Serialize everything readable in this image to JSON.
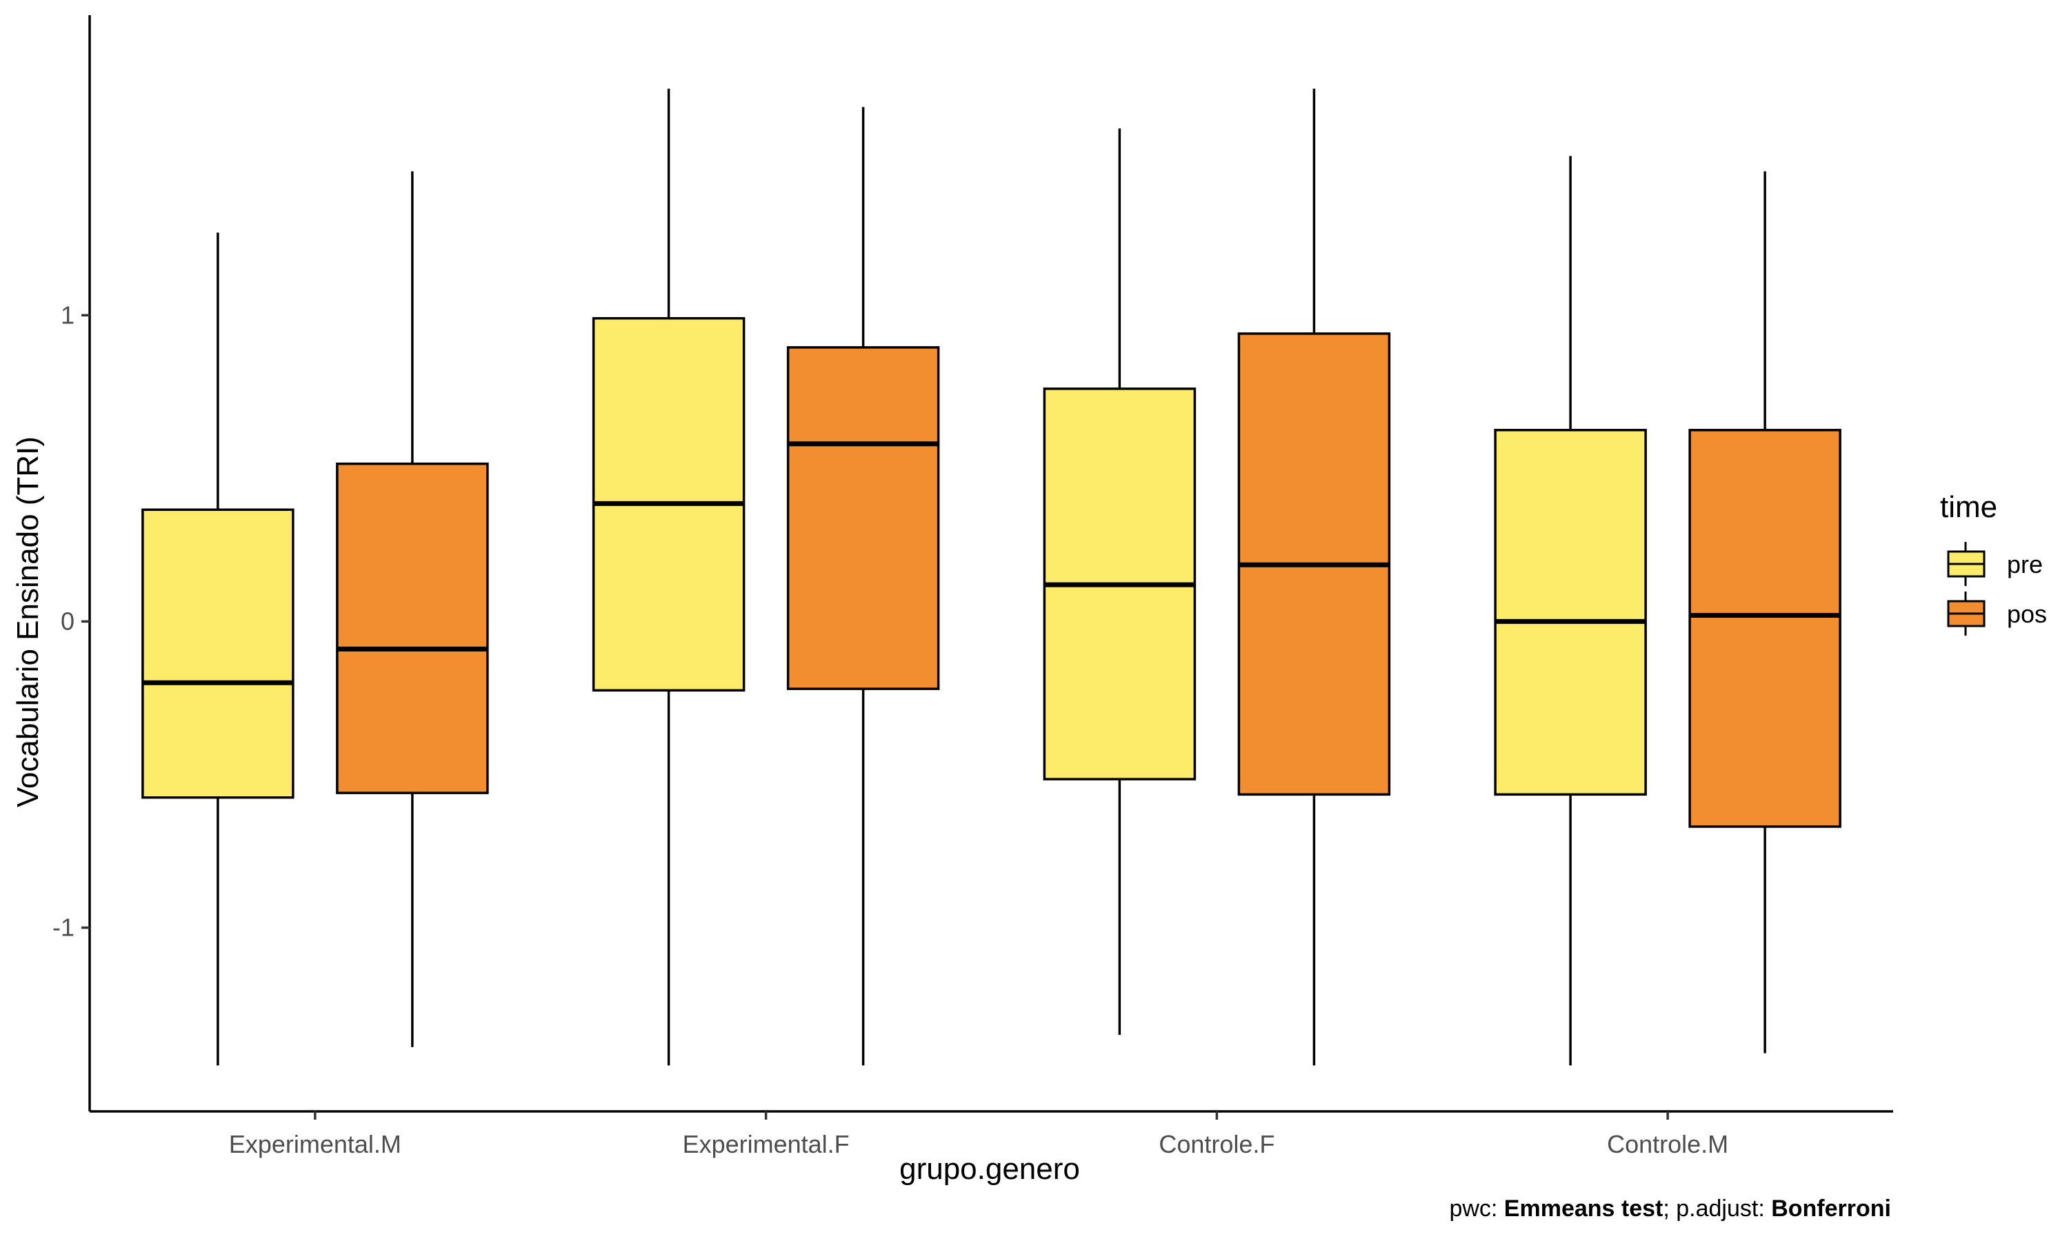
{
  "chart_data": {
    "type": "boxplot",
    "xlabel": "grupo.genero",
    "ylabel": "Vocabulario Ensinado (TRI)",
    "categories": [
      "Experimental.M",
      "Experimental.F",
      "Controle.F",
      "Controle.M"
    ],
    "y_ticks": [
      {
        "value": -1,
        "label": "-1"
      },
      {
        "value": 0,
        "label": "0"
      },
      {
        "value": 1,
        "label": "1"
      }
    ],
    "ylim": [
      -1.6,
      1.98
    ],
    "grid": false,
    "legend": {
      "title": "time",
      "placement": "right",
      "entries": [
        {
          "label": "pre",
          "color": "#FDEC6A"
        },
        {
          "label": "pos",
          "color": "#F28E2F"
        }
      ]
    },
    "series": [
      {
        "name": "pre",
        "color": "#FDEC6A",
        "boxes": [
          {
            "min": -1.45,
            "q1": -0.575,
            "median": -0.2,
            "q3": 0.365,
            "max": 1.27
          },
          {
            "min": -1.45,
            "q1": -0.225,
            "median": 0.385,
            "q3": 0.99,
            "max": 1.74
          },
          {
            "min": -1.35,
            "q1": -0.515,
            "median": 0.12,
            "q3": 0.76,
            "max": 1.61
          },
          {
            "min": -1.45,
            "q1": -0.565,
            "median": 0.0,
            "q3": 0.625,
            "max": 1.52
          }
        ]
      },
      {
        "name": "pos",
        "color": "#F28E2F",
        "boxes": [
          {
            "min": -1.39,
            "q1": -0.56,
            "median": -0.09,
            "q3": 0.515,
            "max": 1.47
          },
          {
            "min": -1.45,
            "q1": -0.22,
            "median": 0.58,
            "q3": 0.895,
            "max": 1.68
          },
          {
            "min": -1.45,
            "q1": -0.565,
            "median": 0.185,
            "q3": 0.94,
            "max": 1.74
          },
          {
            "min": -1.41,
            "q1": -0.67,
            "median": 0.02,
            "q3": 0.625,
            "max": 1.47
          }
        ]
      }
    ]
  },
  "caption": {
    "prefix1": "pwc: ",
    "bold1": "Emmeans test",
    "prefix2": "; p.adjust: ",
    "bold2": "Bonferroni"
  }
}
